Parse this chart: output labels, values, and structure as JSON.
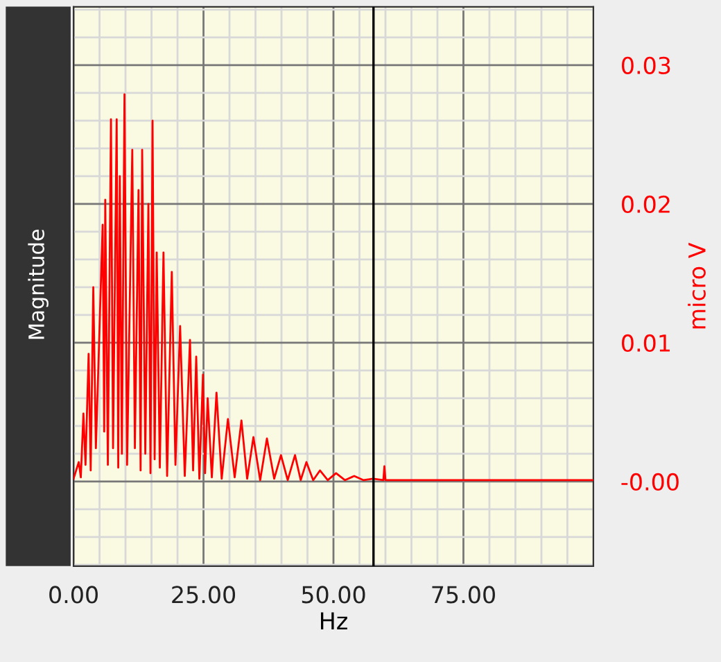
{
  "chart_data": {
    "type": "line",
    "title": "Magnitude",
    "xlabel": "Hz",
    "ylabel": "micro V",
    "xlim": [
      0,
      100
    ],
    "ylim": [
      -0.0061,
      0.0342
    ],
    "xticks": [
      {
        "value": 0,
        "label": "0.00"
      },
      {
        "value": 25,
        "label": "25.00"
      },
      {
        "value": 50,
        "label": "50.00"
      },
      {
        "value": 75,
        "label": "75.00"
      }
    ],
    "yticks": [
      {
        "value": 0,
        "label": "-0.00"
      },
      0.01,
      0.02,
      0.03
    ],
    "grid": true,
    "line_style": "solid",
    "ref_lines": [
      {
        "axis": "x",
        "value": 57.7,
        "color": "#000000"
      }
    ],
    "series": [
      {
        "color": "#ff0000",
        "x": [
          0,
          0.5,
          1.0,
          1.4,
          1.9,
          2.3,
          2.9,
          3.3,
          3.8,
          4.3,
          5.6,
          5.9,
          6.1,
          6.6,
          7.2,
          7.6,
          8.3,
          8.6,
          8.9,
          9.3,
          9.8,
          10.3,
          11.3,
          11.8,
          12.5,
          12.9,
          13.2,
          13.8,
          14.4,
          14.8,
          15.2,
          15.6,
          16.0,
          16.6,
          17.3,
          18.0,
          18.9,
          19.6,
          20.5,
          21.4,
          22.4,
          23.0,
          23.6,
          24.2,
          24.9,
          25.3,
          25.8,
          26.6,
          27.5,
          28.5,
          29.7,
          31.0,
          32.3,
          33.4,
          34.6,
          35.9,
          37.2,
          38.6,
          39.9,
          41.2,
          42.6,
          43.7,
          44.8,
          46.1,
          47.4,
          48.9,
          50.5,
          52.2,
          54.0,
          55.8,
          57.6,
          59.6,
          59.8,
          60.0,
          70,
          80,
          90,
          100
        ],
        "values": [
          0.0002,
          0.0008,
          0.0014,
          0.0003,
          0.0049,
          0.0012,
          0.0092,
          0.0008,
          0.014,
          0.0024,
          0.0185,
          0.0036,
          0.0203,
          0.0012,
          0.0261,
          0.0024,
          0.0261,
          0.001,
          0.022,
          0.002,
          0.0279,
          0.0012,
          0.0239,
          0.0024,
          0.021,
          0.0008,
          0.0239,
          0.002,
          0.02,
          0.0006,
          0.026,
          0.0016,
          0.0165,
          0.001,
          0.0165,
          0.0004,
          0.0151,
          0.0012,
          0.0112,
          0.0004,
          0.0102,
          0.0008,
          0.009,
          0.0002,
          0.0077,
          0.0006,
          0.006,
          0.0003,
          0.0064,
          0.0002,
          0.0045,
          0.0003,
          0.0044,
          0.0002,
          0.0032,
          0.0001,
          0.0031,
          0.0002,
          0.0019,
          0.0001,
          0.0019,
          0.0001,
          0.0014,
          0.0001,
          0.0008,
          0.0001,
          0.0006,
          0.0001,
          0.0004,
          0.0001,
          0.0002,
          0.0001,
          0.0011,
          0.0001,
          0.0001,
          0.0001,
          0.0001,
          0.0001
        ]
      }
    ]
  }
}
